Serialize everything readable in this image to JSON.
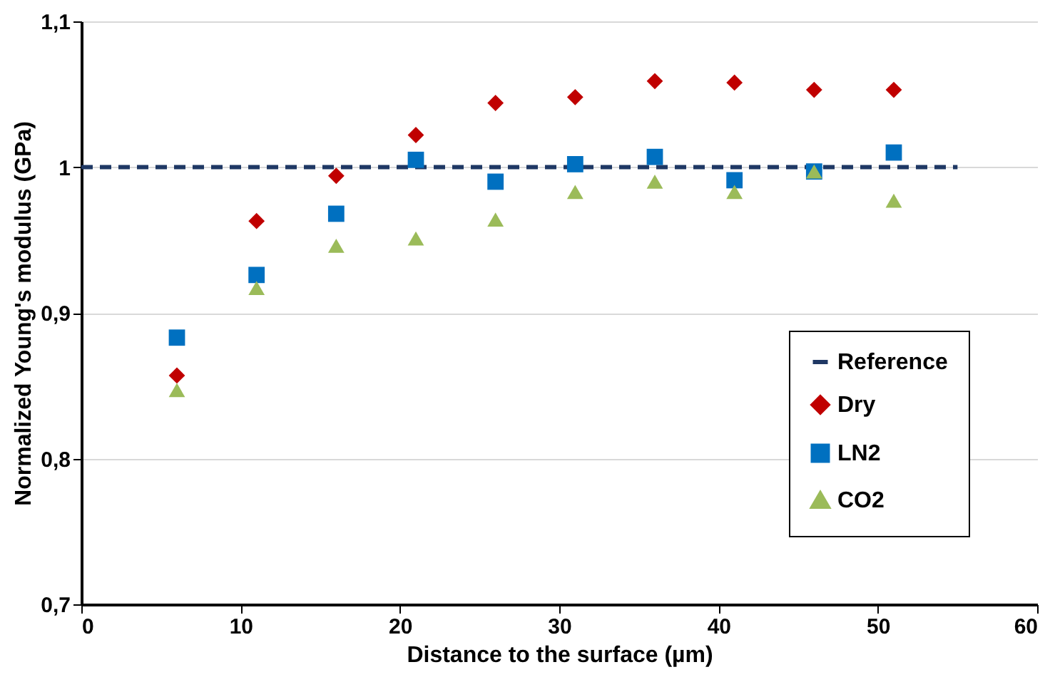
{
  "chart_data": {
    "type": "scatter",
    "xlabel": "Distance to the surface (µm)",
    "ylabel": "Normalized Young's modulus (GPa)",
    "x": [
      6,
      11,
      16,
      21,
      26,
      31,
      36,
      41,
      46,
      51
    ],
    "series": [
      {
        "name": "Reference",
        "type": "line",
        "line_style": "dashed",
        "marker": "none",
        "color": "#1f3864",
        "x": [
          0,
          55
        ],
        "values": [
          1,
          1
        ]
      },
      {
        "name": "Dry",
        "marker": "diamond",
        "color": "#c00000",
        "values": [
          0.857,
          0.963,
          0.994,
          1.022,
          1.044,
          1.048,
          1.059,
          1.058,
          1.053,
          1.053
        ]
      },
      {
        "name": "LN2",
        "marker": "square",
        "color": "#0070c0",
        "values": [
          0.883,
          0.926,
          0.968,
          1.005,
          0.99,
          1.002,
          1.007,
          0.991,
          0.997,
          1.01
        ]
      },
      {
        "name": "CO2",
        "marker": "triangle",
        "color": "#9bbb59",
        "values": [
          0.847,
          0.917,
          0.946,
          0.951,
          0.964,
          0.983,
          0.99,
          0.983,
          0.997,
          0.977
        ]
      }
    ],
    "xlim": [
      0,
      60
    ],
    "xticks": [
      0,
      10,
      20,
      30,
      40,
      50,
      60
    ],
    "ylim": [
      0.7,
      1.1
    ],
    "yticks": [
      {
        "value": 0.7,
        "label": "0,7"
      },
      {
        "value": 0.8,
        "label": "0,8"
      },
      {
        "value": 0.9,
        "label": "0,9"
      },
      {
        "value": 1,
        "label": "1"
      },
      {
        "value": 1.1,
        "label": "1,1"
      }
    ],
    "grid": "y",
    "legend": "bottom right"
  }
}
